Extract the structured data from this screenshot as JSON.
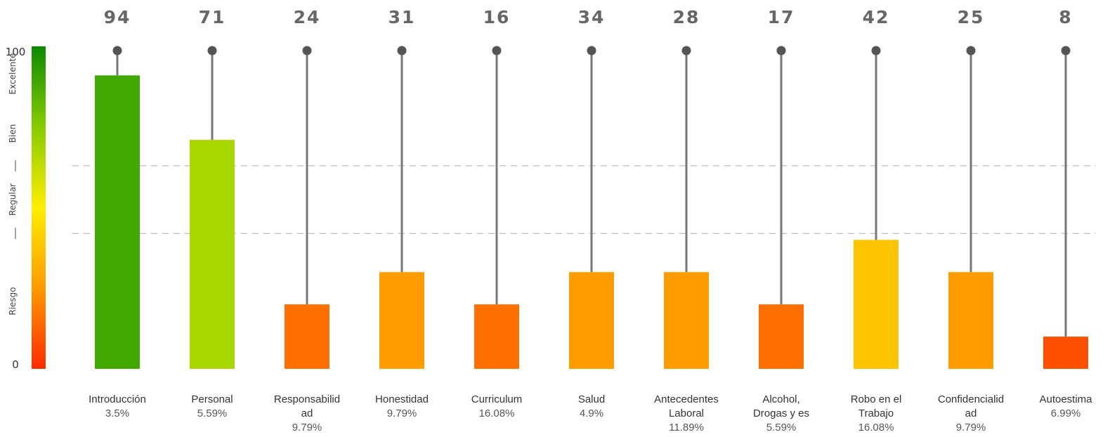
{
  "chart_data": {
    "type": "bar",
    "ylim": [
      0,
      100
    ],
    "y_ticks": [
      "0",
      "100"
    ],
    "scale_zones": [
      {
        "label": "Riesgo",
        "from": 0,
        "to": 42
      },
      {
        "label": "Regular",
        "from": 42,
        "to": 63
      },
      {
        "label": "Bien",
        "from": 63,
        "to": 83
      },
      {
        "label": "Excelente",
        "from": 83,
        "to": 100
      }
    ],
    "zone_thresholds": [
      42,
      63
    ],
    "grid": "dashed lines at zone thresholds",
    "categories": [
      {
        "label_lines": [
          "Introducción"
        ],
        "percent": "3.5%",
        "score": 94,
        "bar_value": 91,
        "color": "#40a800"
      },
      {
        "label_lines": [
          "Personal"
        ],
        "percent": "5.59%",
        "score": 71,
        "bar_value": 71,
        "color": "#a8d800"
      },
      {
        "label_lines": [
          "Responsabilid",
          "ad"
        ],
        "percent": "9.79%",
        "score": 24,
        "bar_value": 20,
        "color": "#ff7000"
      },
      {
        "label_lines": [
          "Honestidad"
        ],
        "percent": "9.79%",
        "score": 31,
        "bar_value": 30,
        "color": "#ff9c00"
      },
      {
        "label_lines": [
          "Curriculum"
        ],
        "percent": "16.08%",
        "score": 16,
        "bar_value": 20,
        "color": "#ff7000"
      },
      {
        "label_lines": [
          "Salud"
        ],
        "percent": "4.9%",
        "score": 34,
        "bar_value": 30,
        "color": "#ff9c00"
      },
      {
        "label_lines": [
          "Antecedentes",
          "Laboral"
        ],
        "percent": "11.89%",
        "score": 28,
        "bar_value": 30,
        "color": "#ff9c00"
      },
      {
        "label_lines": [
          "Alcohol,",
          "Drogas y es"
        ],
        "percent": "5.59%",
        "score": 17,
        "bar_value": 20,
        "color": "#ff7000"
      },
      {
        "label_lines": [
          "Robo en el",
          "Trabajo"
        ],
        "percent": "16.08%",
        "score": 42,
        "bar_value": 40,
        "color": "#ffc400"
      },
      {
        "label_lines": [
          "Confidencialid",
          "ad"
        ],
        "percent": "9.79%",
        "score": 25,
        "bar_value": 30,
        "color": "#ff9c00"
      },
      {
        "label_lines": [
          "Autoestima"
        ],
        "percent": "6.99%",
        "score": 8,
        "bar_value": 10,
        "color": "#ff5000"
      }
    ],
    "colors": {
      "stem": "#777777",
      "dot": "#555555",
      "grid": "#aaaaaa",
      "gradient": [
        "#ff2a00",
        "#ff9900",
        "#ffee00",
        "#88cc00",
        "#0a8a00"
      ]
    }
  }
}
